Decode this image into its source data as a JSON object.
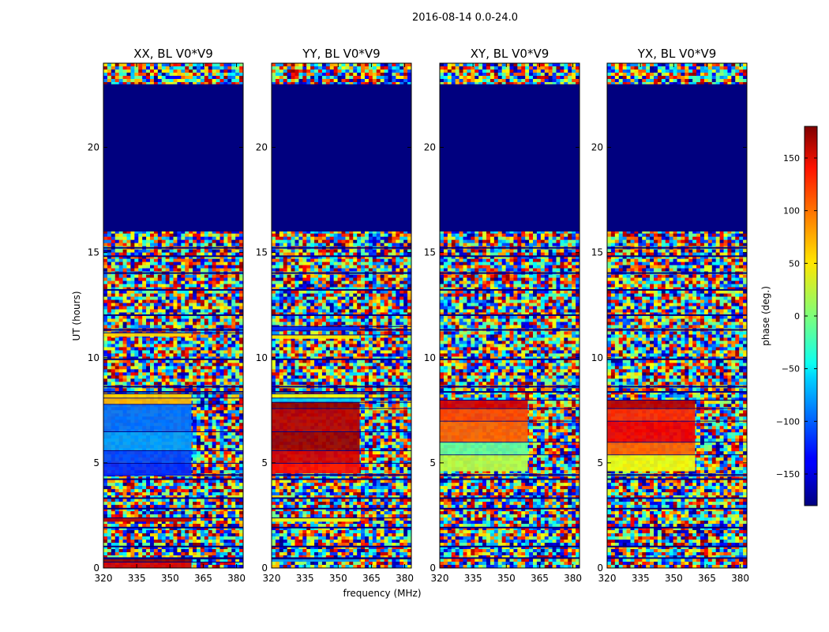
{
  "figure_title": "2016-08-14 0.0-24.0",
  "chart_data": {
    "type": "heatmap",
    "suptitle": "2016-08-14 0.0-24.0",
    "xlabel": "frequency (MHz)",
    "ylabel": "UT (hours)",
    "xlim": [
      320,
      383
    ],
    "ylim": [
      0,
      24
    ],
    "xticks": [
      "320",
      "335",
      "350",
      "365",
      "380"
    ],
    "xtick_values": [
      320,
      335,
      350,
      365,
      380
    ],
    "yticks": [
      "0",
      "5",
      "10",
      "15",
      "20"
    ],
    "ytick_values": [
      0,
      5,
      10,
      15,
      20
    ],
    "colorbar": {
      "label": "phase (deg.)",
      "range": [
        -180,
        180
      ],
      "ticks": [
        "150",
        "100",
        "50",
        "0",
        "−50",
        "−100",
        "−150"
      ],
      "tick_values": [
        150,
        100,
        50,
        0,
        -50,
        -100,
        -150
      ],
      "colormap": "jet"
    },
    "panels": [
      {
        "title": "XX, BL V0*V9",
        "blank_range_hours": [
          16,
          23
        ],
        "bands": [
          {
            "y": [
              0.0,
              0.3
            ],
            "phase": 150
          },
          {
            "y": [
              0.3,
              0.45
            ],
            "phase": 175
          },
          {
            "y": [
              2.2,
              2.4
            ],
            "phase": 160
          },
          {
            "y": [
              4.4,
              5.0
            ],
            "phase": -120
          },
          {
            "y": [
              5.0,
              5.6
            ],
            "phase": -110
          },
          {
            "y": [
              5.6,
              6.5
            ],
            "phase": -80
          },
          {
            "y": [
              6.5,
              7.8
            ],
            "phase": -95
          },
          {
            "y": [
              7.8,
              8.1
            ],
            "phase": 70
          },
          {
            "y": [
              8.1,
              8.3
            ],
            "phase": 60
          },
          {
            "y": [
              11.0,
              11.2
            ],
            "phase": 60
          }
        ]
      },
      {
        "title": "YY, BL V0*V9",
        "blank_range_hours": [
          16,
          23
        ],
        "bands": [
          {
            "y": [
              0.3,
              0.45
            ],
            "phase": -80
          },
          {
            "y": [
              2.2,
              2.4
            ],
            "phase": 40
          },
          {
            "y": [
              4.5,
              5.0
            ],
            "phase": 130
          },
          {
            "y": [
              5.0,
              5.6
            ],
            "phase": 150
          },
          {
            "y": [
              5.6,
              6.5
            ],
            "phase": 170
          },
          {
            "y": [
              6.5,
              7.6
            ],
            "phase": 160
          },
          {
            "y": [
              7.6,
              7.9
            ],
            "phase": 175
          },
          {
            "y": [
              7.9,
              8.1
            ],
            "phase": -60
          },
          {
            "y": [
              8.1,
              8.3
            ],
            "phase": 40
          },
          {
            "y": [
              10.9,
              11.1
            ],
            "phase": 50
          },
          {
            "y": [
              11.3,
              11.5
            ],
            "phase": -120
          }
        ]
      },
      {
        "title": "XY, BL V0*V9",
        "blank_range_hours": [
          16,
          23
        ],
        "bands": [
          {
            "y": [
              4.6,
              5.4
            ],
            "phase": 20
          },
          {
            "y": [
              5.4,
              6.0
            ],
            "phase": -10
          },
          {
            "y": [
              6.0,
              7.0
            ],
            "phase": 100
          },
          {
            "y": [
              7.0,
              7.6
            ],
            "phase": 110
          },
          {
            "y": [
              7.6,
              8.0
            ],
            "phase": 150
          }
        ]
      },
      {
        "title": "YX, BL V0*V9",
        "blank_range_hours": [
          16,
          23
        ],
        "bands": [
          {
            "y": [
              4.6,
              5.4
            ],
            "phase": 40
          },
          {
            "y": [
              5.4,
              6.0
            ],
            "phase": 100
          },
          {
            "y": [
              6.0,
              7.0
            ],
            "phase": 140
          },
          {
            "y": [
              7.0,
              7.6
            ],
            "phase": 120
          },
          {
            "y": [
              7.6,
              8.0
            ],
            "phase": 160
          }
        ]
      }
    ]
  }
}
